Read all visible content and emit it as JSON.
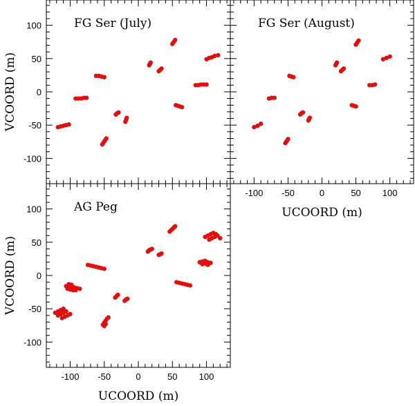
{
  "figure": {
    "point_color": "#e01010"
  },
  "chart_data": [
    {
      "type": "scatter",
      "title": "FG Ser (July)",
      "xlabel": "UCOORD (m)",
      "ylabel": "VCOORD (m)",
      "xlim": [
        -135,
        135
      ],
      "ylim": [
        -138,
        138
      ],
      "xticks": [
        -100,
        -50,
        0,
        50,
        100
      ],
      "yticks": [
        -100,
        -50,
        0,
        50,
        100
      ],
      "show_xlabel": false,
      "show_ylabel": true,
      "show_xticklabels": false,
      "show_yticklabels": true,
      "series": [
        {
          "name": "FG Ser July",
          "points": [
            [
              -118,
              -53
            ],
            [
              -114,
              -52
            ],
            [
              -110,
              -51
            ],
            [
              -106,
              -50
            ],
            [
              -102,
              -49
            ],
            [
              -92,
              -10
            ],
            [
              -88,
              -10
            ],
            [
              -84,
              -10
            ],
            [
              -80,
              -9
            ],
            [
              -76,
              -9
            ],
            [
              -62,
              24
            ],
            [
              -58,
              24
            ],
            [
              -54,
              23
            ],
            [
              -50,
              22
            ],
            [
              -53,
              -79
            ],
            [
              -51,
              -76
            ],
            [
              -49,
              -73
            ],
            [
              -47,
              -70
            ],
            [
              -33,
              -34
            ],
            [
              -31,
              -32
            ],
            [
              -29,
              -31
            ],
            [
              -19,
              -45
            ],
            [
              -18,
              -42
            ],
            [
              -17,
              -39
            ],
            [
              16,
              40
            ],
            [
              17,
              42
            ],
            [
              18,
              44
            ],
            [
              30,
              31
            ],
            [
              32,
              33
            ],
            [
              34,
              35
            ],
            [
              50,
              72
            ],
            [
              52,
              75
            ],
            [
              54,
              78
            ],
            [
              55,
              -20
            ],
            [
              58,
              -21
            ],
            [
              61,
              -22
            ],
            [
              64,
              -23
            ],
            [
              84,
              10
            ],
            [
              88,
              10
            ],
            [
              92,
              11
            ],
            [
              96,
              11
            ],
            [
              100,
              11
            ],
            [
              100,
              49
            ],
            [
              104,
              51
            ],
            [
              108,
              52
            ],
            [
              112,
              54
            ],
            [
              117,
              55
            ]
          ]
        }
      ]
    },
    {
      "type": "scatter",
      "title": "FG Ser (August)",
      "xlabel": "UCOORD (m)",
      "ylabel": "VCOORD (m)",
      "xlim": [
        -135,
        135
      ],
      "ylim": [
        -138,
        138
      ],
      "xticks": [
        -100,
        -50,
        0,
        50,
        100
      ],
      "yticks": [
        -100,
        -50,
        0,
        50,
        100
      ],
      "show_xlabel": true,
      "show_ylabel": false,
      "show_xticklabels": true,
      "show_yticklabels": false,
      "series": [
        {
          "name": "FG Ser August",
          "points": [
            [
              -100,
              -53
            ],
            [
              -95,
              -51
            ],
            [
              -90,
              -48
            ],
            [
              -78,
              -10
            ],
            [
              -74,
              -9
            ],
            [
              -70,
              -9
            ],
            [
              -48,
              24
            ],
            [
              -45,
              23
            ],
            [
              -42,
              22
            ],
            [
              -54,
              -77
            ],
            [
              -52,
              -74
            ],
            [
              -50,
              -71
            ],
            [
              -32,
              -34
            ],
            [
              -30,
              -32
            ],
            [
              -28,
              -31
            ],
            [
              -20,
              -43
            ],
            [
              -19,
              -41
            ],
            [
              -18,
              -39
            ],
            [
              20,
              40
            ],
            [
              21,
              42
            ],
            [
              22,
              44
            ],
            [
              28,
              31
            ],
            [
              30,
              33
            ],
            [
              32,
              35
            ],
            [
              50,
              71
            ],
            [
              52,
              74
            ],
            [
              54,
              77
            ],
            [
              44,
              -20
            ],
            [
              47,
              -21
            ],
            [
              50,
              -22
            ],
            [
              70,
              10
            ],
            [
              74,
              10
            ],
            [
              78,
              11
            ],
            [
              90,
              49
            ],
            [
              95,
              51
            ],
            [
              100,
              53
            ]
          ]
        }
      ]
    },
    {
      "type": "scatter",
      "title": "AG Peg",
      "xlabel": "UCOORD (m)",
      "ylabel": "VCOORD (m)",
      "xlim": [
        -135,
        135
      ],
      "ylim": [
        -138,
        138
      ],
      "xticks": [
        -100,
        -50,
        0,
        50,
        100
      ],
      "yticks": [
        -100,
        -50,
        0,
        50,
        100
      ],
      "show_xlabel": true,
      "show_ylabel": true,
      "show_xticklabels": true,
      "show_yticklabels": true,
      "series": [
        {
          "name": "AG Peg",
          "points": [
            [
              -122,
              -56
            ],
            [
              -118,
              -54
            ],
            [
              -114,
              -52
            ],
            [
              -110,
              -50
            ],
            [
              -118,
              -60
            ],
            [
              -114,
              -58
            ],
            [
              -110,
              -56
            ],
            [
              -106,
              -54
            ],
            [
              -112,
              -64
            ],
            [
              -108,
              -62
            ],
            [
              -104,
              -60
            ],
            [
              -100,
              -58
            ],
            [
              -106,
              -16
            ],
            [
              -102,
              -16
            ],
            [
              -98,
              -17
            ],
            [
              -94,
              -18
            ],
            [
              -90,
              -19
            ],
            [
              -86,
              -20
            ],
            [
              -104,
              -20
            ],
            [
              -100,
              -21
            ],
            [
              -96,
              -22
            ],
            [
              -92,
              -22
            ],
            [
              -102,
              -13
            ],
            [
              -98,
              -14
            ],
            [
              -74,
              16
            ],
            [
              -70,
              15
            ],
            [
              -66,
              14
            ],
            [
              -62,
              13
            ],
            [
              -58,
              12
            ],
            [
              -54,
              11
            ],
            [
              -50,
              10
            ],
            [
              -52,
              -74
            ],
            [
              -50,
              -71
            ],
            [
              -48,
              -68
            ],
            [
              -46,
              -65
            ],
            [
              -44,
              -63
            ],
            [
              -50,
              -76
            ],
            [
              -48,
              -73
            ],
            [
              -34,
              -33
            ],
            [
              -32,
              -31
            ],
            [
              -30,
              -29
            ],
            [
              -20,
              -38
            ],
            [
              -18,
              -36
            ],
            [
              -16,
              -35
            ],
            [
              14,
              36
            ],
            [
              16,
              38
            ],
            [
              18,
              39
            ],
            [
              20,
              40
            ],
            [
              30,
              31
            ],
            [
              32,
              32
            ],
            [
              34,
              33
            ],
            [
              46,
              66
            ],
            [
              48,
              68
            ],
            [
              50,
              70
            ],
            [
              52,
              72
            ],
            [
              54,
              74
            ],
            [
              56,
              -10
            ],
            [
              60,
              -11
            ],
            [
              64,
              -12
            ],
            [
              68,
              -13
            ],
            [
              72,
              -14
            ],
            [
              76,
              -15
            ],
            [
              90,
              20
            ],
            [
              94,
              21
            ],
            [
              98,
              22
            ],
            [
              102,
              20
            ],
            [
              106,
              19
            ],
            [
              94,
              17
            ],
            [
              98,
              18
            ],
            [
              102,
              16
            ],
            [
              98,
              58
            ],
            [
              102,
              60
            ],
            [
              106,
              62
            ],
            [
              110,
              64
            ],
            [
              114,
              62
            ],
            [
              104,
              54
            ],
            [
              108,
              56
            ],
            [
              112,
              58
            ],
            [
              116,
              60
            ],
            [
              120,
              56
            ]
          ]
        }
      ]
    }
  ]
}
